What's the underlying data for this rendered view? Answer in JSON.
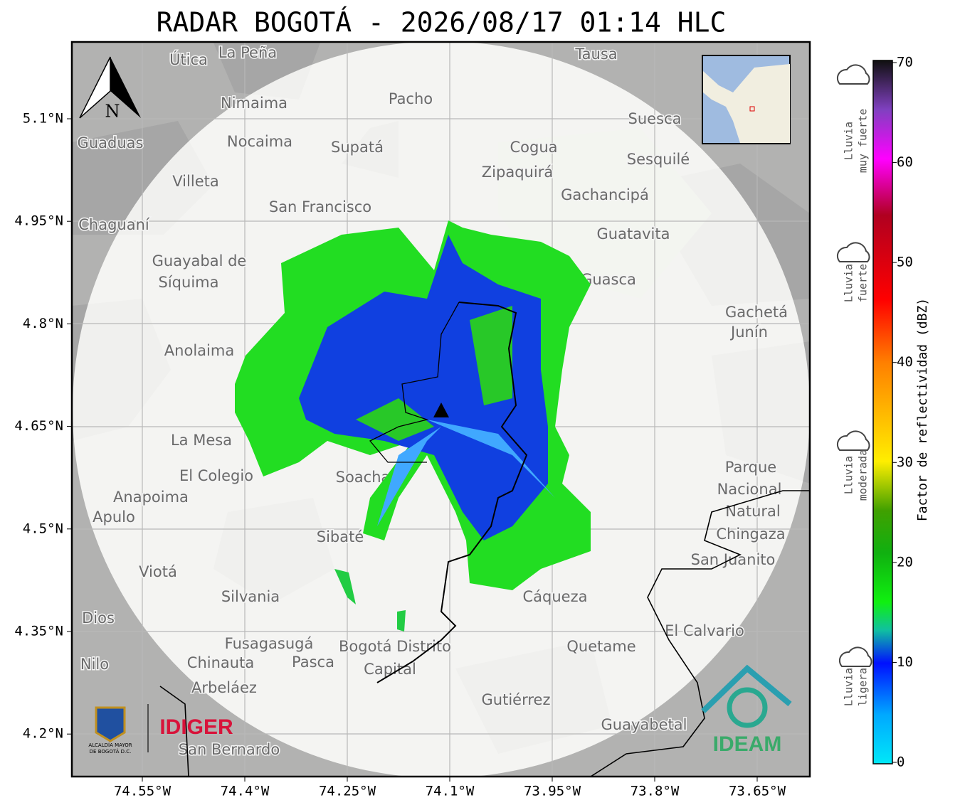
{
  "title": "RADAR BOGOTÁ - 2026/08/17 01:14 HLC",
  "axes": {
    "lat_ticks": [
      "5.1°N",
      "4.95°N",
      "4.8°N",
      "4.65°N",
      "4.5°N",
      "4.35°N",
      "4.2°N"
    ],
    "lon_ticks": [
      "74.55°W",
      "74.4°W",
      "74.25°W",
      "74.1°W",
      "73.95°W",
      "73.8°W",
      "73.65°W"
    ]
  },
  "colorbar": {
    "label": "Factor de reflectividad (dBZ)",
    "ticks": [
      0,
      10,
      20,
      30,
      40,
      50,
      60,
      70
    ]
  },
  "rain_categories": [
    {
      "lines": [
        "Lluvia",
        "muy fuerte"
      ]
    },
    {
      "lines": [
        "Lluvia",
        "fuerte"
      ]
    },
    {
      "lines": [
        "Lluvia",
        "moderada"
      ]
    },
    {
      "lines": [
        "Lluvia",
        "ligera"
      ]
    }
  ],
  "north": "N",
  "places": [
    "La Peña",
    "Útica",
    "Tausa",
    "Pacho",
    "Nimaima",
    "Guaduas",
    "Nocaima",
    "Supatá",
    "Cogua",
    "Suesca",
    "Zipaquirá",
    "Sesquilé",
    "Villeta",
    "San Francisco",
    "Gachancipá",
    "Chaguaní",
    "Guatavita",
    "Guayabal de",
    "Síquima",
    "Guasca",
    "Gachetá",
    "Junín",
    "Anolaima",
    "La Mesa",
    "El Colegio",
    "Anapoima",
    "Apulo",
    "Soacha",
    "Sibaté",
    "Viotá",
    "Silvania",
    "Dios",
    "Fusagasugá",
    "Bogotá Distrito",
    "Capital",
    "Nilo",
    "Chinauta",
    "Pasca",
    "Arbeláez",
    "Gutiérrez",
    "Guayabetal",
    "San Bernardo",
    "Quetame",
    "El Calvario",
    "Cáqueza",
    "San Juanito",
    "Chingaza",
    "Natural",
    "Nacional",
    "Parque"
  ],
  "logos": {
    "idiger": "IDIGER",
    "ideam": "IDEAM",
    "alcaldia": [
      "ALCALDÍA MAYOR",
      "DE BOGOTÁ D.C."
    ]
  }
}
